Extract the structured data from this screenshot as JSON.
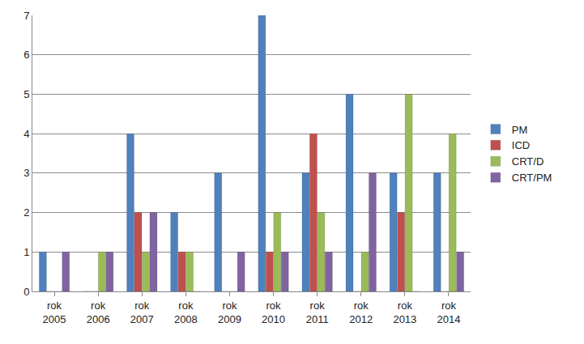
{
  "chart_data": {
    "type": "bar",
    "categories": [
      "rok 2005",
      "rok 2006",
      "rok 2007",
      "rok 2008",
      "rok 2009",
      "rok 2010",
      "rok 2011",
      "rok 2012",
      "rok 2013",
      "rok 2014"
    ],
    "series": [
      {
        "name": "PM",
        "color": "#4f81bd",
        "values": [
          1,
          0,
          4,
          2,
          3,
          7,
          3,
          5,
          3,
          3
        ]
      },
      {
        "name": "ICD",
        "color": "#c0504d",
        "values": [
          0,
          0,
          2,
          1,
          0,
          1,
          4,
          0,
          2,
          0
        ]
      },
      {
        "name": "CRT/D",
        "color": "#9bbb59",
        "values": [
          0,
          1,
          1,
          1,
          0,
          2,
          2,
          1,
          5,
          4
        ]
      },
      {
        "name": "CRT/PM",
        "color": "#8064a2",
        "values": [
          1,
          1,
          2,
          0,
          1,
          1,
          1,
          3,
          0,
          1
        ]
      }
    ],
    "ylim": [
      0,
      7
    ],
    "yticks": [
      0,
      1,
      2,
      3,
      4,
      5,
      6,
      7
    ],
    "grid": true,
    "legend": "right"
  }
}
